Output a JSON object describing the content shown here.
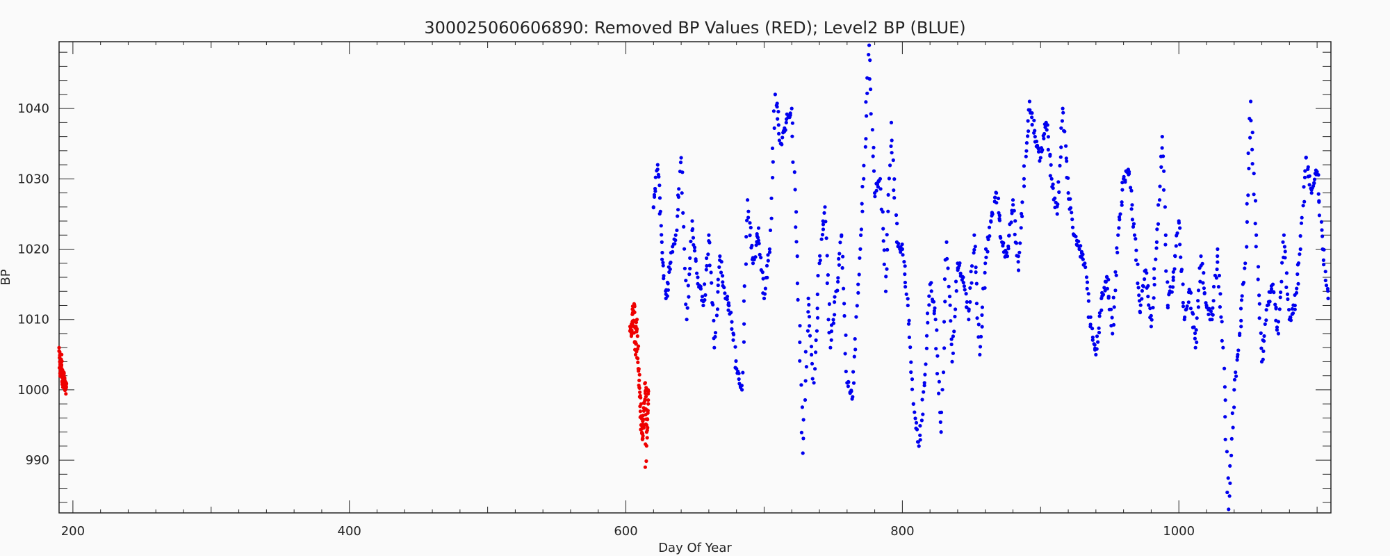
{
  "chart_data": {
    "type": "scatter",
    "title": "300025060606890: Removed BP Values (RED); Level2 BP (BLUE)",
    "xlabel": "Day Of Year",
    "ylabel": "BP",
    "xlim": [
      190,
      1110
    ],
    "ylim": [
      982.5,
      1049.5
    ],
    "x_ticks": [
      200,
      400,
      600,
      800,
      1000
    ],
    "x_tick_labels": [
      "200",
      "400",
      "600",
      "800",
      "1000"
    ],
    "y_ticks": [
      990,
      1000,
      1010,
      1020,
      1030,
      1040
    ],
    "y_tick_labels": [
      "990",
      "1000",
      "1010",
      "1020",
      "1030",
      "1040"
    ],
    "grid": false,
    "legend": "none",
    "series": [
      {
        "color": "#ee0000",
        "segments": [
          [
            [
              190,
              1006
            ],
            [
              190.5,
              1004
            ],
            [
              191,
              1002
            ],
            [
              191.5,
              1005
            ],
            [
              192,
              1003
            ],
            [
              192.5,
              1001
            ],
            [
              193,
              1002
            ],
            [
              193.5,
              1000.5
            ],
            [
              194,
              1001.5
            ],
            [
              194.5,
              1000
            ],
            [
              195,
              1001
            ]
          ],
          [
            [
              603,
              1009
            ],
            [
              604,
              1008
            ],
            [
              605,
              1011
            ],
            [
              606,
              1012
            ],
            [
              607,
              1005
            ],
            [
              608,
              1010
            ],
            [
              609,
              1003
            ],
            [
              610,
              999
            ],
            [
              611,
              995
            ],
            [
              612,
              993
            ],
            [
              613,
              997
            ],
            [
              614,
              1001
            ],
            [
              615,
              994
            ],
            [
              616,
              1000
            ],
            [
              614,
              989
            ]
          ]
        ]
      },
      {
        "color": "#0000ee",
        "segments": [
          [
            [
              620,
              1026
            ],
            [
              623,
              1032
            ],
            [
              626,
              1021
            ],
            [
              629,
              1013
            ],
            [
              632,
              1018
            ],
            [
              636,
              1022
            ],
            [
              640,
              1033
            ],
            [
              644,
              1010
            ],
            [
              648,
              1024
            ],
            [
              652,
              1016
            ],
            [
              656,
              1012
            ],
            [
              660,
              1022
            ],
            [
              664,
              1006
            ],
            [
              668,
              1019
            ],
            [
              672,
              1013
            ],
            [
              676,
              1011
            ],
            [
              680,
              1003
            ],
            [
              684,
              1000
            ],
            [
              688,
              1027
            ],
            [
              692,
              1018
            ],
            [
              696,
              1023
            ],
            [
              700,
              1013
            ],
            [
              704,
              1020
            ],
            [
              708,
              1042
            ],
            [
              712,
              1035
            ],
            [
              716,
              1038
            ],
            [
              720,
              1040
            ],
            [
              724,
              1019
            ],
            [
              728,
              991
            ],
            [
              732,
              1013
            ],
            [
              736,
              1001
            ],
            [
              740,
              1018
            ],
            [
              744,
              1026
            ],
            [
              748,
              1006
            ],
            [
              752,
              1014
            ],
            [
              756,
              1022
            ],
            [
              760,
              1001
            ],
            [
              764,
              999
            ],
            [
              768,
              1015
            ],
            [
              772,
              1030
            ],
            [
              776,
              1049
            ],
            [
              780,
              1028
            ],
            [
              784,
              1030
            ],
            [
              788,
              1014
            ],
            [
              792,
              1038
            ],
            [
              796,
              1021
            ],
            [
              800,
              1020
            ],
            [
              804,
              1012
            ],
            [
              808,
              998
            ],
            [
              812,
              992
            ],
            [
              816,
              1001
            ],
            [
              820,
              1015
            ],
            [
              824,
              1010
            ],
            [
              828,
              994
            ],
            [
              832,
              1021
            ],
            [
              836,
              1004
            ],
            [
              840,
              1018
            ],
            [
              844,
              1016
            ],
            [
              848,
              1010
            ],
            [
              852,
              1022
            ],
            [
              856,
              1005
            ],
            [
              860,
              1018
            ],
            [
              864,
              1024
            ],
            [
              868,
              1028
            ],
            [
              872,
              1021
            ],
            [
              876,
              1019
            ],
            [
              880,
              1027
            ],
            [
              884,
              1017
            ],
            [
              888,
              1030
            ],
            [
              892,
              1041
            ],
            [
              896,
              1036
            ],
            [
              900,
              1033
            ],
            [
              904,
              1038
            ],
            [
              908,
              1030
            ],
            [
              912,
              1025
            ],
            [
              916,
              1040
            ],
            [
              920,
              1028
            ],
            [
              924,
              1022
            ],
            [
              928,
              1020
            ],
            [
              932,
              1018
            ],
            [
              936,
              1009
            ],
            [
              940,
              1005
            ],
            [
              944,
              1013
            ],
            [
              948,
              1016
            ],
            [
              952,
              1008
            ],
            [
              956,
              1022
            ],
            [
              960,
              1030
            ],
            [
              964,
              1031
            ],
            [
              968,
              1022
            ],
            [
              972,
              1011
            ],
            [
              976,
              1017
            ],
            [
              980,
              1009
            ],
            [
              984,
              1021
            ],
            [
              988,
              1036
            ],
            [
              992,
              1012
            ],
            [
              996,
              1016
            ],
            [
              1000,
              1024
            ],
            [
              1004,
              1010
            ],
            [
              1008,
              1014
            ],
            [
              1012,
              1006
            ],
            [
              1016,
              1019
            ],
            [
              1020,
              1012
            ],
            [
              1024,
              1010
            ],
            [
              1028,
              1020
            ],
            [
              1032,
              1006
            ],
            [
              1036,
              983
            ],
            [
              1040,
              1000
            ],
            [
              1044,
              1008
            ],
            [
              1048,
              1018
            ],
            [
              1052,
              1041
            ],
            [
              1056,
              1022
            ],
            [
              1060,
              1004
            ],
            [
              1064,
              1012
            ],
            [
              1068,
              1015
            ],
            [
              1072,
              1008
            ],
            [
              1076,
              1022
            ],
            [
              1080,
              1010
            ],
            [
              1084,
              1012
            ],
            [
              1088,
              1020
            ],
            [
              1092,
              1033
            ],
            [
              1096,
              1028
            ],
            [
              1100,
              1031
            ],
            [
              1104,
              1020
            ],
            [
              1108,
              1013
            ]
          ]
        ]
      }
    ]
  }
}
